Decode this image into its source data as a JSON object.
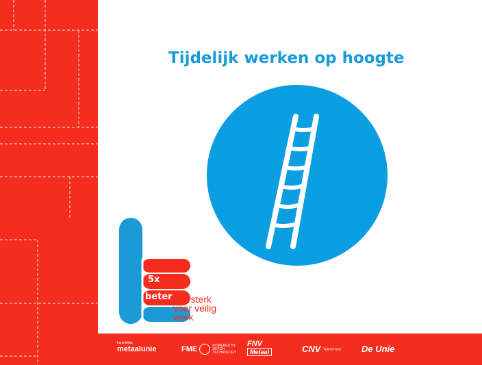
{
  "slide": {
    "title": "Tijdelijk werken op hoogte",
    "icon": "ladder-icon",
    "colors": {
      "red": "#f52d1e",
      "blue": "#0b9ee0",
      "white": "#ffffff"
    }
  },
  "logo": {
    "badge_5x": "5x",
    "badge_beter": "beter",
    "tagline_line1": "ijzersterk",
    "tagline_line2": "voor veilig",
    "tagline_line3": "werk"
  },
  "footer": {
    "sponsors": [
      {
        "prefix": "koninklijke",
        "name": "metaalunie"
      },
      {
        "name": "FME",
        "note": "POWERED BY DUTCH TECHNOLOGY"
      },
      {
        "name": "FNV",
        "sub": "Metaal"
      },
      {
        "name": "CNV",
        "note": "Vakmensen"
      },
      {
        "name": "De Unie"
      }
    ]
  }
}
